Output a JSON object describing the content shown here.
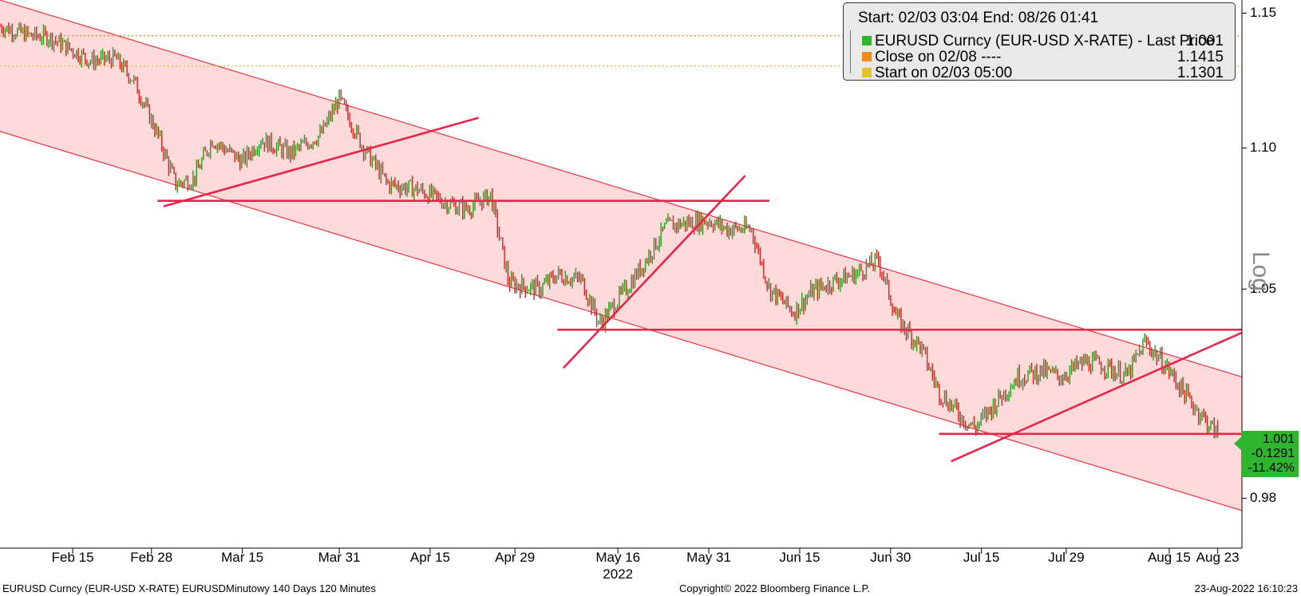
{
  "legend": {
    "header": "Start: 02/03 03:04 End: 08/26 01:41",
    "rows": [
      {
        "label": "EURUSD Curncy (EUR-USD X-RATE) - Last Price",
        "value": "1.001",
        "color": "#2fb52f"
      },
      {
        "label": "Close on 02/08 ----",
        "value": "1.1415",
        "color": "#f08c1e"
      },
      {
        "label": "Start on 02/03 05:00",
        "value": "1.1301",
        "color": "#e3c32a"
      }
    ]
  },
  "badge": {
    "price": "1.001",
    "change": "-0.1291",
    "pct": "-11.42%"
  },
  "footer": {
    "left": "EURUSD Curncy (EUR-USD X-RATE) EURUSDMinutowy 140 Days 120 Minutes",
    "center": "Copyright© 2022 Bloomberg Finance L.P.",
    "right": "23-Aug-2022 16:10:23"
  },
  "chart_data": {
    "type": "line",
    "title": "",
    "series": [
      {
        "name": "EURUSD Curncy (EUR-USD X-RATE) - Last Price",
        "color": "#1f9e1f"
      }
    ],
    "x": [
      "2022-02-03",
      "2022-02-08",
      "2022-02-11",
      "2022-02-15",
      "2022-02-18",
      "2022-02-22",
      "2022-02-25",
      "2022-03-01",
      "2022-03-04",
      "2022-03-07",
      "2022-03-10",
      "2022-03-15",
      "2022-03-18",
      "2022-03-23",
      "2022-03-28",
      "2022-03-31",
      "2022-04-04",
      "2022-04-08",
      "2022-04-13",
      "2022-04-18",
      "2022-04-21",
      "2022-04-25",
      "2022-04-28",
      "2022-05-03",
      "2022-05-06",
      "2022-05-10",
      "2022-05-13",
      "2022-05-17",
      "2022-05-20",
      "2022-05-24",
      "2022-05-27",
      "2022-05-31",
      "2022-06-03",
      "2022-06-07",
      "2022-06-10",
      "2022-06-14",
      "2022-06-17",
      "2022-06-21",
      "2022-06-24",
      "2022-06-28",
      "2022-07-01",
      "2022-07-05",
      "2022-07-08",
      "2022-07-12",
      "2022-07-14",
      "2022-07-18",
      "2022-07-21",
      "2022-07-25",
      "2022-07-28",
      "2022-08-01",
      "2022-08-04",
      "2022-08-08",
      "2022-08-11",
      "2022-08-15",
      "2022-08-18",
      "2022-08-22",
      "2022-08-23"
    ],
    "y": [
      1.145,
      1.1415,
      1.141,
      1.136,
      1.132,
      1.133,
      1.125,
      1.105,
      1.087,
      1.089,
      1.103,
      1.095,
      1.103,
      1.098,
      1.105,
      1.118,
      1.1,
      1.087,
      1.085,
      1.08,
      1.078,
      1.083,
      1.052,
      1.05,
      1.055,
      1.053,
      1.038,
      1.049,
      1.058,
      1.072,
      1.073,
      1.074,
      1.071,
      1.071,
      1.05,
      1.042,
      1.049,
      1.053,
      1.055,
      1.06,
      1.04,
      1.03,
      1.015,
      1.006,
      1.003,
      1.013,
      1.02,
      1.022,
      1.02,
      1.025,
      1.024,
      1.02,
      1.032,
      1.022,
      1.013,
      1.003,
      1.001
    ],
    "ylim": [
      0.964,
      1.155
    ],
    "yscale": "log",
    "yticks": [
      0.98,
      1.05,
      1.1,
      1.15
    ],
    "ytick_labels": [
      "0.98",
      "1.05",
      "1.10",
      "1.15"
    ],
    "xtick_labels": [
      {
        "label": "Feb 15",
        "date": "2022-02-15"
      },
      {
        "label": "Feb 28",
        "date": "2022-02-28"
      },
      {
        "label": "Mar 15",
        "date": "2022-03-15"
      },
      {
        "label": "Mar 31",
        "date": "2022-03-31"
      },
      {
        "label": "Apr 15",
        "date": "2022-04-15"
      },
      {
        "label": "Apr 29",
        "date": "2022-04-29"
      },
      {
        "label": "May 16",
        "date": "2022-05-16"
      },
      {
        "label": "May 31",
        "date": "2022-05-31"
      },
      {
        "label": "Jun 15",
        "date": "2022-06-15"
      },
      {
        "label": "Jun 30",
        "date": "2022-06-30"
      },
      {
        "label": "Jul 15",
        "date": "2022-07-15"
      },
      {
        "label": "Jul 29",
        "date": "2022-07-29"
      },
      {
        "label": "Aug 15",
        "date": "2022-08-15"
      },
      {
        "label": "Aug 23",
        "date": "2022-08-23"
      }
    ],
    "year_label": "2022",
    "yaxis_label": "Log",
    "reference_lines": {
      "close_level": 1.1415,
      "start_level": 1.1301,
      "supports": [
        {
          "y": 1.081,
          "x0": "2022-03-01",
          "x1": "2022-06-10"
        },
        {
          "y": 1.036,
          "x0": "2022-05-06",
          "x1": "2022-08-27"
        },
        {
          "y": 1.001,
          "x0": "2022-07-08",
          "x1": "2022-08-27"
        }
      ],
      "trendlines": [
        {
          "x0": "2022-03-02",
          "y0": 1.079,
          "x1": "2022-04-23",
          "y1": 1.111
        },
        {
          "x0": "2022-05-07",
          "y0": 1.023,
          "x1": "2022-06-06",
          "y1": 1.09
        },
        {
          "x0": "2022-07-10",
          "y0": 0.992,
          "x1": "2022-08-27",
          "y1": 1.035
        }
      ],
      "channel": {
        "upper": {
          "x0": "2022-02-03",
          "y0": 1.155,
          "x1": "2022-08-27",
          "y1": 1.02
        },
        "lower": {
          "x0": "2022-02-03",
          "y0": 1.106,
          "x1": "2022-08-27",
          "y1": 0.976
        }
      }
    },
    "colors": {
      "up": "#1f9e1f",
      "down": "#d42020",
      "trend": "#e8254a",
      "channel_fill": "#ffdada",
      "channel_line": "#ee3344",
      "close_line": "#f08c1e",
      "start_line": "#e3c32a"
    }
  }
}
